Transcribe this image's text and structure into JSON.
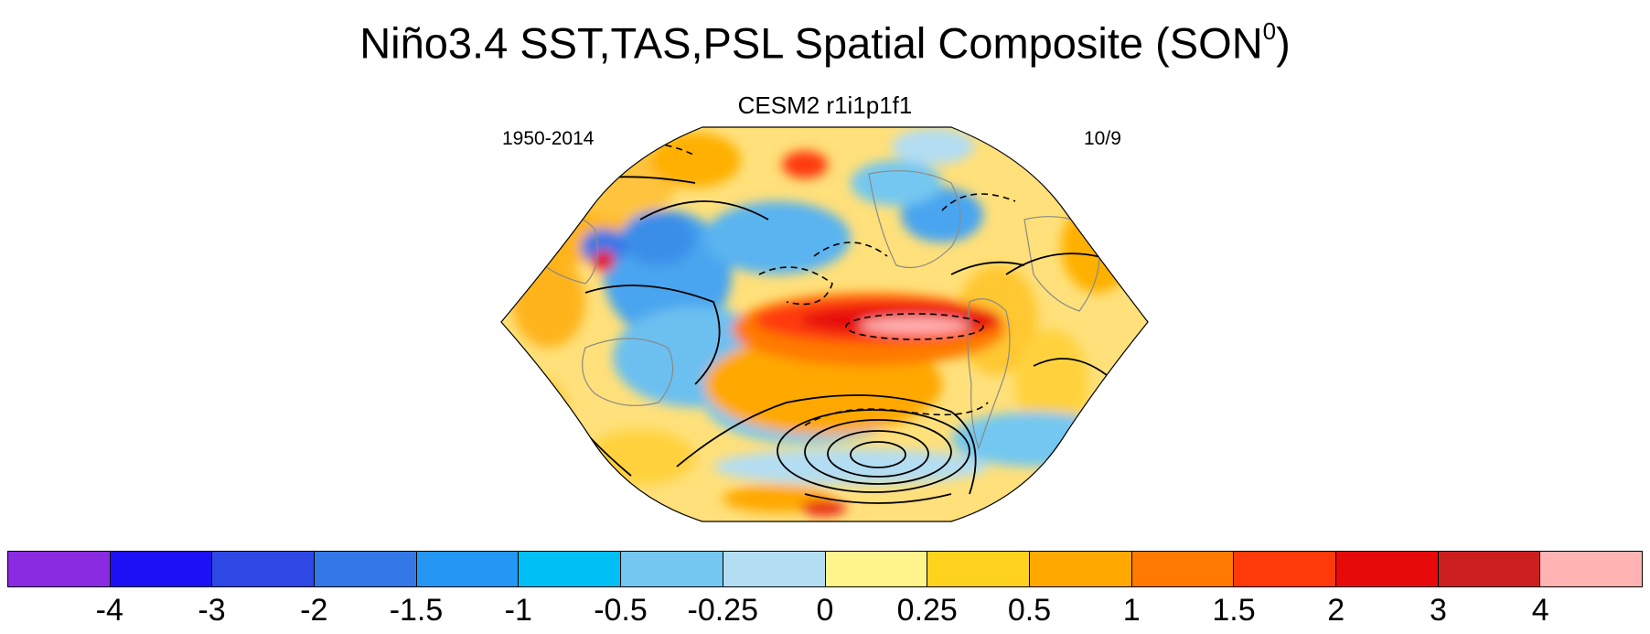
{
  "header": {
    "title": "Niño3.4 SST,TAS,PSL Spatial Composite (SON",
    "title_sup": "0",
    "title_close": ")",
    "model": "CESM2 r1i1p1f1",
    "period": "1950-2014",
    "count": "10/9"
  },
  "map": {
    "projection": "Robinson (Pacific-centered)",
    "variable_shading": "SST/TAS anomaly",
    "variable_contours": "PSL anomaly"
  },
  "colorbar": {
    "colors": [
      "#8a2be2",
      "#1e10f5",
      "#2e48e6",
      "#3478e8",
      "#2497f5",
      "#00bff5",
      "#73c7f0",
      "#b3ddf2",
      "#fff58c",
      "#ffd21e",
      "#ffa800",
      "#ff7a00",
      "#ff3a0a",
      "#e60a0a",
      "#cc1e1e",
      "#ffb3b3"
    ],
    "labels": [
      "-4",
      "-3",
      "-2",
      "-1.5",
      "-1",
      "-0.5",
      "-0.25",
      "0",
      "0.25",
      "0.5",
      "1",
      "1.5",
      "2",
      "3",
      "4"
    ]
  }
}
